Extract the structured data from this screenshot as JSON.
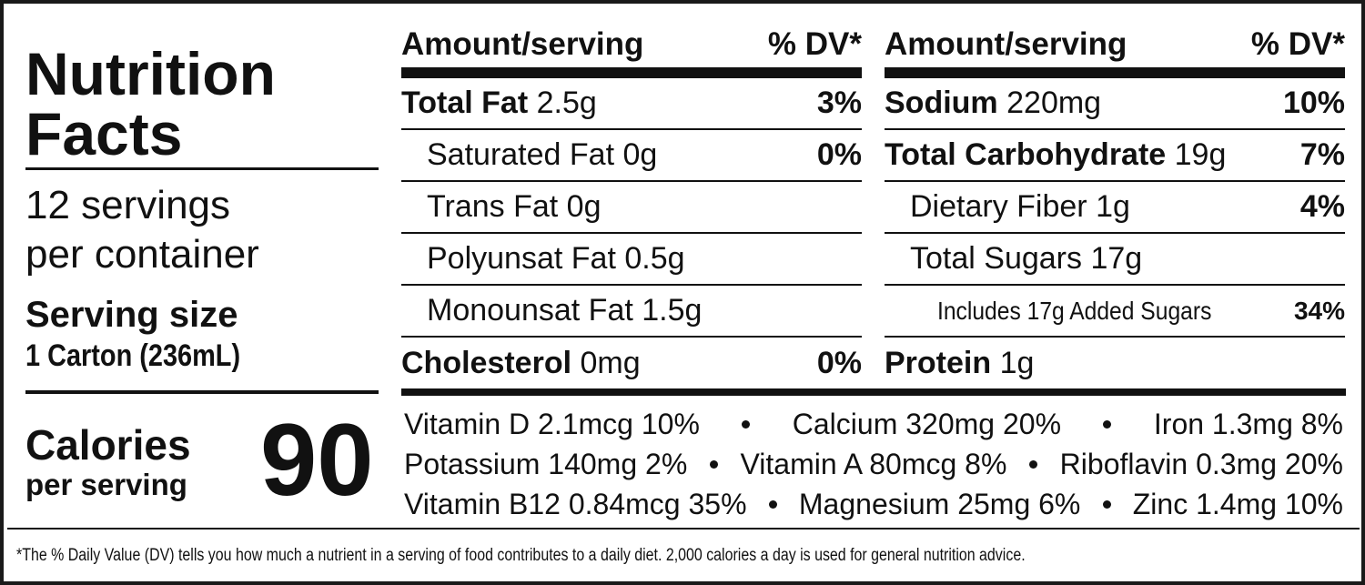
{
  "title": "Nutrition Facts",
  "servings": {
    "count": "12 servings",
    "per": "per container"
  },
  "serving_size": {
    "label": "Serving size",
    "value": "1 Carton (236mL)"
  },
  "calories": {
    "label": "Calories",
    "per": "per serving",
    "value": "90"
  },
  "columns": [
    {
      "header": {
        "amount": "Amount/serving",
        "dv": "% DV*"
      },
      "rows": [
        {
          "name": "Total Fat",
          "amount": "2.5g",
          "dv": "3%"
        },
        {
          "name": "Saturated Fat",
          "amount": "0g",
          "dv": "0%"
        },
        {
          "name": "Trans Fat",
          "amount": "0g"
        },
        {
          "name": "Polyunsat Fat",
          "amount": "0.5g"
        },
        {
          "name": "Monounsat Fat",
          "amount": "1.5g"
        },
        {
          "name": "Cholesterol",
          "amount": "0mg",
          "dv": "0%"
        }
      ]
    },
    {
      "header": {
        "amount": "Amount/serving",
        "dv": "% DV*"
      },
      "rows": [
        {
          "name": "Sodium",
          "amount": "220mg",
          "dv": "10%"
        },
        {
          "name": "Total Carbohydrate",
          "amount": "19g",
          "dv": "7%"
        },
        {
          "name": "Dietary Fiber",
          "amount": "1g",
          "dv": "4%"
        },
        {
          "name": "Total Sugars",
          "amount": "17g"
        },
        {
          "name": "Includes 17g Added Sugars",
          "dv": "34%"
        },
        {
          "name": "Protein",
          "amount": "1g"
        }
      ]
    }
  ],
  "vitamins": [
    [
      "Vitamin D 2.1mcg 10%",
      "Calcium 320mg 20%",
      "Iron 1.3mg 8%"
    ],
    [
      "Potassium 140mg 2%",
      "Vitamin A 80mcg 8%",
      "Riboflavin 0.3mg 20%"
    ],
    [
      "Vitamin B12 0.84mcg 35%",
      "Magnesium 25mg 6%",
      "Zinc 1.4mg 10%"
    ]
  ],
  "footnote": "*The % Daily Value (DV) tells you how much a nutrient in a serving of food contributes to a daily diet. 2,000 calories a day is used for general nutrition advice."
}
